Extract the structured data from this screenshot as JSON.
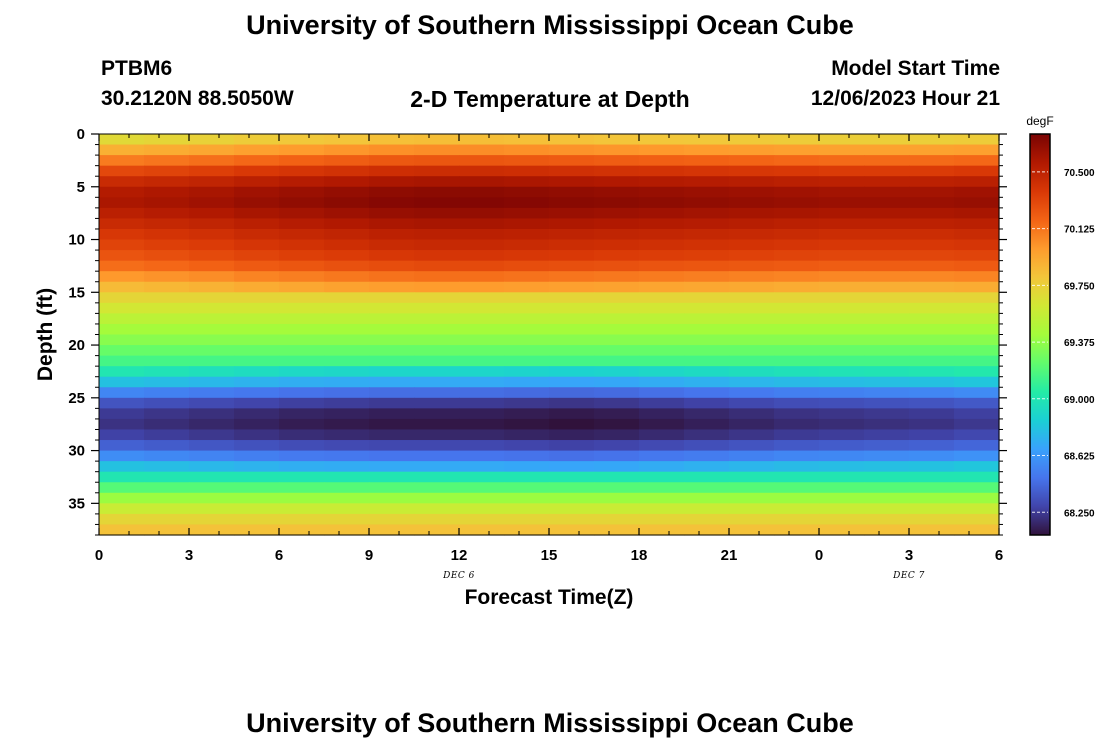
{
  "header": {
    "title": "University of Southern Mississippi Ocean Cube",
    "station": "PTBM6",
    "location": "30.2120N  88.5050W",
    "plot_title": "2-D Temperature at Depth",
    "model_label": "Model Start Time",
    "model_time": "12/06/2023 Hour 21"
  },
  "footer": {
    "title": "University of Southern Mississippi Ocean Cube"
  },
  "chart_data": {
    "type": "heatmap",
    "title": "2-D Temperature at Depth",
    "xlabel": "Forecast Time(Z)",
    "ylabel": "Depth (ft)",
    "x_ticks": [
      "0",
      "3",
      "6",
      "9",
      "12",
      "15",
      "18",
      "21",
      "0",
      "3",
      "6"
    ],
    "x_range_hours": [
      0,
      30
    ],
    "date_labels": [
      {
        "text": "DEC 6",
        "hour": 12
      },
      {
        "text": "DEC 7",
        "hour": 27
      }
    ],
    "y_ticks": [
      "0",
      "5",
      "10",
      "15",
      "20",
      "25",
      "30",
      "35"
    ],
    "ylim_ft": [
      0,
      38
    ],
    "colorbar": {
      "unit": "degF",
      "min": 68.1,
      "max": 70.75,
      "labels": [
        "70.500",
        "70.125",
        "69.750",
        "69.375",
        "69.000",
        "68.625",
        "68.250"
      ],
      "label_values": [
        70.5,
        70.125,
        69.75,
        69.375,
        69.0,
        68.625,
        68.25
      ],
      "stops": [
        "#30123b",
        "#4145ab",
        "#4675ed",
        "#39a2fc",
        "#1bcfd4",
        "#24eca6",
        "#61fc6c",
        "#a4fc3b",
        "#d1e834",
        "#f3c63a",
        "#fe9b2d",
        "#f36315",
        "#d93806",
        "#b11901",
        "#7a0403"
      ]
    },
    "time_columns_hours": [
      0,
      1.5,
      3,
      4.5,
      6,
      7.5,
      9,
      10.5,
      12,
      13.5,
      15,
      16.5,
      18,
      19.5,
      21,
      22.5,
      24,
      25.5,
      27,
      28.5
    ],
    "depth_rows_ft": [
      0,
      1,
      2,
      3,
      4,
      5,
      6,
      7,
      8,
      9,
      10,
      11,
      12,
      13,
      14,
      15,
      16,
      17,
      18,
      19,
      20,
      21,
      22,
      23,
      24,
      25,
      26,
      27,
      28,
      29,
      30,
      31,
      32,
      33,
      34,
      35,
      36,
      37
    ],
    "temperature_profile_degF": [
      69.7,
      69.9,
      70.1,
      70.3,
      70.45,
      70.55,
      70.58,
      70.52,
      70.45,
      70.38,
      70.32,
      70.25,
      70.15,
      70.0,
      69.85,
      69.72,
      69.62,
      69.52,
      69.43,
      69.35,
      69.25,
      69.15,
      69.0,
      68.8,
      68.55,
      68.35,
      68.25,
      68.22,
      68.28,
      68.4,
      68.58,
      68.8,
      69.0,
      69.2,
      69.4,
      69.58,
      69.72,
      69.82
    ],
    "surface_time_anomaly_degF": [
      0.0,
      0.02,
      0.04,
      0.07,
      0.09,
      0.11,
      0.13,
      0.14,
      0.14,
      0.13,
      0.12,
      0.11,
      0.1,
      0.09,
      0.08,
      0.07,
      0.06,
      0.06,
      0.06,
      0.07
    ],
    "deep_time_anomaly_degF": [
      0.0,
      -0.02,
      -0.04,
      -0.06,
      -0.08,
      -0.09,
      -0.1,
      -0.1,
      -0.1,
      -0.11,
      -0.12,
      -0.11,
      -0.09,
      -0.07,
      -0.05,
      -0.03,
      -0.02,
      -0.01,
      0.0,
      0.02
    ]
  }
}
